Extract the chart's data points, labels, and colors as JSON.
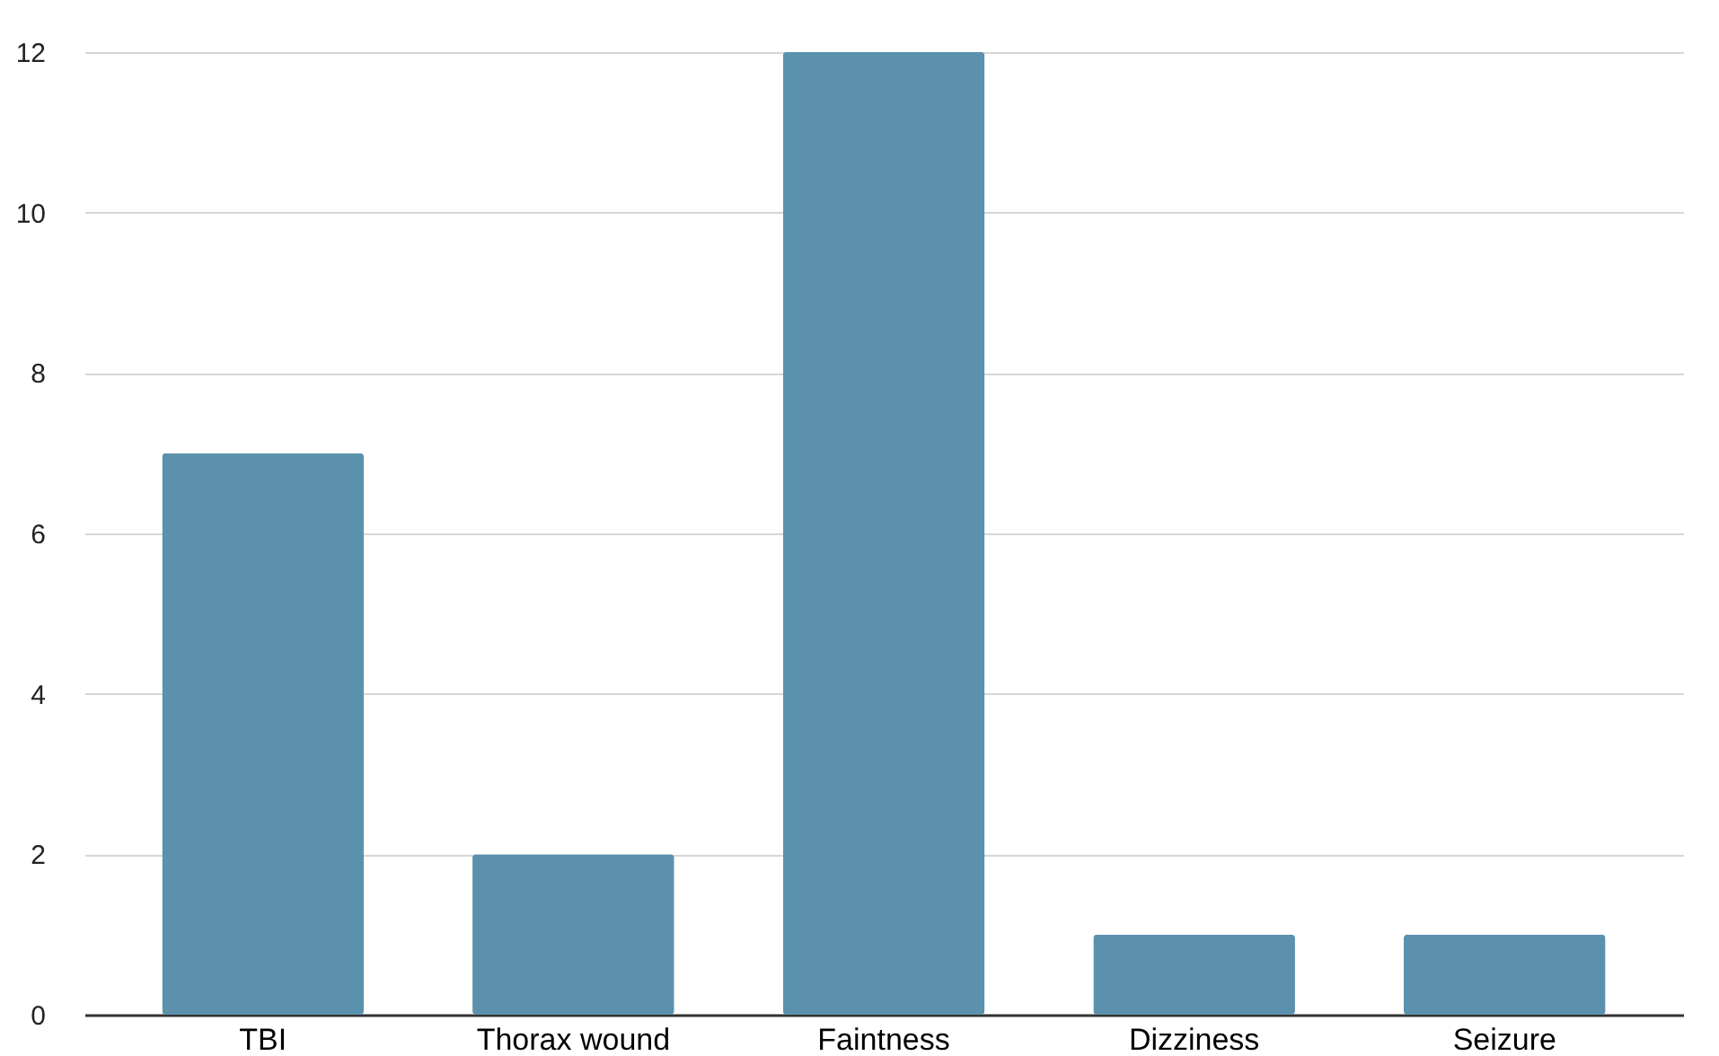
{
  "chart_data": {
    "type": "bar",
    "categories": [
      "TBI",
      "Thorax wound",
      "Faintness",
      "Dizziness",
      "Seizure"
    ],
    "values": [
      7,
      2,
      12,
      1,
      1
    ],
    "color": "#5b91ad",
    "ylim": [
      0,
      12
    ],
    "yticks": [
      0,
      2,
      4,
      6,
      8,
      10,
      12
    ],
    "grid": "y"
  }
}
